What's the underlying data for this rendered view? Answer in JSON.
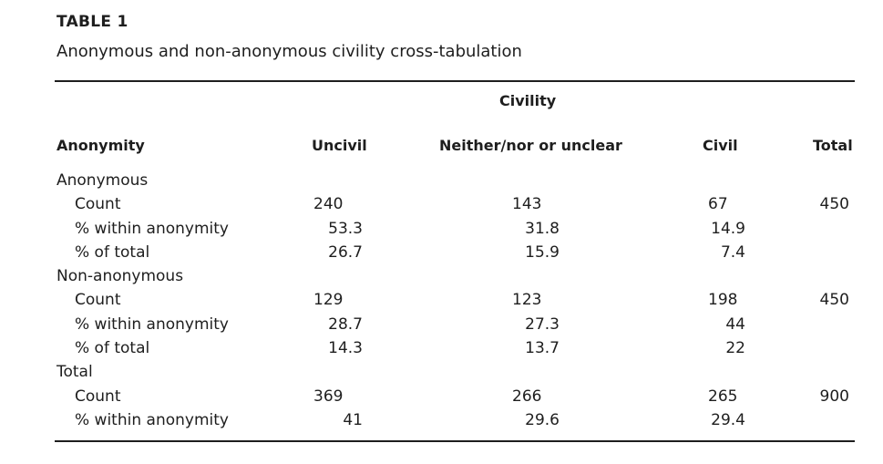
{
  "table": {
    "label": "TABLE 1",
    "caption": "Anonymous and non-anonymous civility cross-tabulation",
    "spanner": "Civility",
    "headers": {
      "anonymity": "Anonymity",
      "uncivil": "Uncivil",
      "neither": "Neither/nor or unclear",
      "civil": "Civil",
      "total": "Total"
    },
    "rows": [
      {
        "type": "group",
        "label": "Anonymous"
      },
      {
        "type": "count",
        "label": "Count",
        "uncivil": "240",
        "neither": "143",
        "civil": "67",
        "total": "450"
      },
      {
        "type": "sub",
        "label": "% within anonymity",
        "uncivil": "53.3",
        "neither": "31.8",
        "civil": "14.9",
        "total": ""
      },
      {
        "type": "sub",
        "label": "% of total",
        "uncivil": "26.7",
        "neither": "15.9",
        "civil": "7.4",
        "total": ""
      },
      {
        "type": "group",
        "label": "Non-anonymous"
      },
      {
        "type": "count",
        "label": "Count",
        "uncivil": "129",
        "neither": "123",
        "civil": "198",
        "total": "450"
      },
      {
        "type": "sub",
        "label": "% within anonymity",
        "uncivil": "28.7",
        "neither": "27.3",
        "civil": "44",
        "total": ""
      },
      {
        "type": "sub",
        "label": "% of total",
        "uncivil": "14.3",
        "neither": "13.7",
        "civil": "22",
        "total": ""
      },
      {
        "type": "group",
        "label": "Total"
      },
      {
        "type": "count",
        "label": "Count",
        "uncivil": "369",
        "neither": "266",
        "civil": "265",
        "total": "900"
      },
      {
        "type": "sub",
        "label": "% within anonymity",
        "uncivil": "41",
        "neither": "29.6",
        "civil": "29.4",
        "total": ""
      }
    ]
  }
}
